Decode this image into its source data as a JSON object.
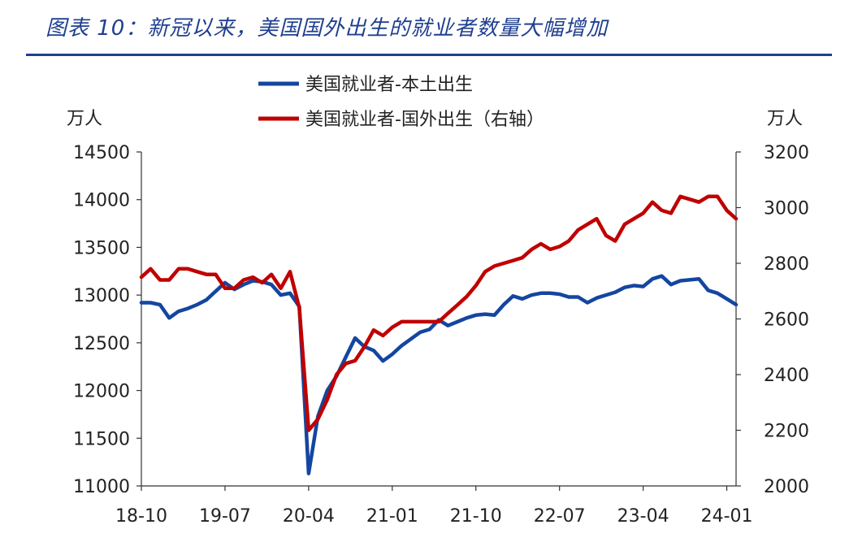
{
  "title": "图表 10：新冠以来，美国国外出生的就业者数量大幅增加",
  "chart_data": {
    "type": "line",
    "left_unit": "万人",
    "right_unit": "万人",
    "x_tick_labels": [
      "18-10",
      "19-07",
      "20-04",
      "21-01",
      "21-10",
      "22-07",
      "23-04",
      "24-01"
    ],
    "left_axis": {
      "min": 11000,
      "max": 14500,
      "ticks": [
        11000,
        11500,
        12000,
        12500,
        13000,
        13500,
        14000,
        14500
      ]
    },
    "right_axis": {
      "min": 2000,
      "max": 3200,
      "ticks": [
        2000,
        2200,
        2400,
        2600,
        2800,
        3000,
        3200
      ]
    },
    "legend": [
      "美国就业者-本土出生",
      "美国就业者-国外出生（右轴）"
    ],
    "colors": {
      "native": "#1446a0",
      "foreign": "#c00000"
    },
    "x": [
      "2018-10",
      "2018-11",
      "2018-12",
      "2019-01",
      "2019-02",
      "2019-03",
      "2019-04",
      "2019-05",
      "2019-06",
      "2019-07",
      "2019-08",
      "2019-09",
      "2019-10",
      "2019-11",
      "2019-12",
      "2020-01",
      "2020-02",
      "2020-03",
      "2020-04",
      "2020-05",
      "2020-06",
      "2020-07",
      "2020-08",
      "2020-09",
      "2020-10",
      "2020-11",
      "2020-12",
      "2021-01",
      "2021-02",
      "2021-03",
      "2021-04",
      "2021-05",
      "2021-06",
      "2021-07",
      "2021-08",
      "2021-09",
      "2021-10",
      "2021-11",
      "2021-12",
      "2022-01",
      "2022-02",
      "2022-03",
      "2022-04",
      "2022-05",
      "2022-06",
      "2022-07",
      "2022-08",
      "2022-09",
      "2022-10",
      "2022-11",
      "2022-12",
      "2023-01",
      "2023-02",
      "2023-03",
      "2023-04",
      "2023-05",
      "2023-06",
      "2023-07",
      "2023-08",
      "2023-09",
      "2023-10",
      "2023-11",
      "2023-12",
      "2024-01",
      "2024-02"
    ],
    "series": [
      {
        "name": "美国就业者-本土出生",
        "axis": "left",
        "values": [
          12920,
          12920,
          12900,
          12760,
          12830,
          12860,
          12900,
          12950,
          13040,
          13130,
          13060,
          13110,
          13150,
          13140,
          13110,
          13000,
          13020,
          12880,
          11130,
          11730,
          12000,
          12150,
          12350,
          12550,
          12460,
          12420,
          12310,
          12380,
          12470,
          12540,
          12610,
          12640,
          12740,
          12680,
          12720,
          12760,
          12790,
          12800,
          12790,
          12900,
          12990,
          12960,
          13000,
          13020,
          13020,
          13010,
          12980,
          12980,
          12920,
          12970,
          13000,
          13030,
          13080,
          13100,
          13090,
          13170,
          13200,
          13110,
          13150,
          13160,
          13170,
          13050,
          13020,
          12960,
          12900
        ]
      },
      {
        "name": "美国就业者-国外出生（右轴）",
        "axis": "right",
        "values": [
          2750,
          2780,
          2740,
          2740,
          2780,
          2780,
          2770,
          2760,
          2760,
          2710,
          2710,
          2740,
          2750,
          2730,
          2760,
          2710,
          2770,
          2640,
          2200,
          2240,
          2310,
          2400,
          2440,
          2450,
          2500,
          2560,
          2540,
          2570,
          2590,
          2590,
          2590,
          2590,
          2590,
          2620,
          2650,
          2680,
          2720,
          2770,
          2790,
          2800,
          2810,
          2820,
          2850,
          2870,
          2850,
          2860,
          2880,
          2920,
          2940,
          2960,
          2900,
          2880,
          2940,
          2960,
          2980,
          3020,
          2990,
          2980,
          3040,
          3030,
          3020,
          3040,
          3040,
          2990,
          2960
        ]
      }
    ]
  }
}
